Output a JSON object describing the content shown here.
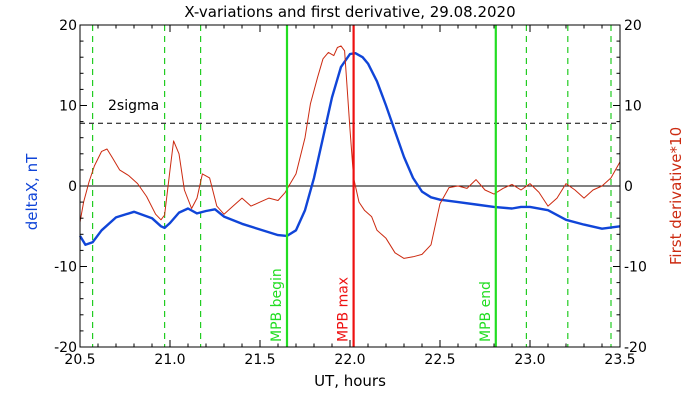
{
  "chart_data": {
    "type": "line",
    "title": "X-variations and first derivative, 29.08.2020",
    "xlabel": "UT, hours",
    "ylabel_left": "deltaX, nT",
    "ylabel_right": "First derivative*10",
    "xlim": [
      20.5,
      23.5
    ],
    "ylim": [
      -20,
      20
    ],
    "xticks": [
      {
        "v": 20.5,
        "label": "20.5"
      },
      {
        "v": 21.0,
        "label": "21.0"
      },
      {
        "v": 21.5,
        "label": "21.5"
      },
      {
        "v": 22.0,
        "label": "22.0"
      },
      {
        "v": 22.5,
        "label": "22.5"
      },
      {
        "v": 23.0,
        "label": "23.0"
      },
      {
        "v": 23.5,
        "label": "23.5"
      }
    ],
    "yticks": [
      {
        "v": 20,
        "label": "20"
      },
      {
        "v": 10,
        "label": "10"
      },
      {
        "v": 0,
        "label": "0"
      },
      {
        "v": -10,
        "label": "-10"
      },
      {
        "v": -20,
        "label": "-20"
      }
    ],
    "sigma_level": 7.8,
    "sigma_label": "2sigma",
    "colors": {
      "deltaX": "#1045d8",
      "derivative": "#cc2a10",
      "green": "#22dd22",
      "red": "#ee1010",
      "dashed_green": "#22cc22",
      "black": "#000000"
    },
    "dashed_green_lines": [
      20.57,
      20.97,
      21.17,
      22.98,
      23.21,
      23.45
    ],
    "vertical_markers": [
      {
        "x": 21.65,
        "label": "MPB begin",
        "color": "green"
      },
      {
        "x": 22.02,
        "label": "MPB max",
        "color": "red"
      },
      {
        "x": 22.81,
        "label": "MPB end",
        "color": "green"
      }
    ],
    "series": [
      {
        "name": "deltaX",
        "axis": "left",
        "x": [
          20.5,
          20.53,
          20.57,
          20.62,
          20.7,
          20.8,
          20.9,
          20.95,
          20.97,
          21.0,
          21.05,
          21.1,
          21.15,
          21.2,
          21.25,
          21.3,
          21.4,
          21.5,
          21.6,
          21.65,
          21.7,
          21.75,
          21.8,
          21.85,
          21.9,
          21.95,
          22.0,
          22.03,
          22.07,
          22.1,
          22.15,
          22.2,
          22.25,
          22.3,
          22.35,
          22.4,
          22.45,
          22.5,
          22.6,
          22.7,
          22.8,
          22.9,
          22.95,
          23.0,
          23.1,
          23.2,
          23.3,
          23.4,
          23.5
        ],
        "y": [
          -6.2,
          -7.3,
          -7.0,
          -5.5,
          -3.9,
          -3.2,
          -4.0,
          -5.0,
          -5.2,
          -4.6,
          -3.3,
          -2.8,
          -3.4,
          -3.1,
          -2.9,
          -3.8,
          -4.7,
          -5.4,
          -6.1,
          -6.2,
          -5.5,
          -3.0,
          1.0,
          6.0,
          11.0,
          14.8,
          16.4,
          16.5,
          16.0,
          15.2,
          13.0,
          10.0,
          6.8,
          3.6,
          1.0,
          -0.7,
          -1.4,
          -1.7,
          -2.0,
          -2.3,
          -2.6,
          -2.8,
          -2.6,
          -2.6,
          -3.0,
          -4.2,
          -4.8,
          -5.3,
          -5.0
        ]
      },
      {
        "name": "First derivative*10",
        "axis": "right",
        "x": [
          20.5,
          20.52,
          20.55,
          20.58,
          20.62,
          20.65,
          20.68,
          20.72,
          20.77,
          20.82,
          20.87,
          20.92,
          20.95,
          20.97,
          21.0,
          21.02,
          21.05,
          21.08,
          21.12,
          21.15,
          21.18,
          21.22,
          21.26,
          21.3,
          21.35,
          21.4,
          21.45,
          21.5,
          21.55,
          21.6,
          21.64,
          21.66,
          21.7,
          21.75,
          21.78,
          21.82,
          21.85,
          21.88,
          21.91,
          21.93,
          21.95,
          21.97,
          22.0,
          22.02,
          22.05,
          22.08,
          22.12,
          22.15,
          22.2,
          22.25,
          22.3,
          22.35,
          22.4,
          22.45,
          22.5,
          22.55,
          22.6,
          22.65,
          22.7,
          22.75,
          22.8,
          22.85,
          22.9,
          22.95,
          23.0,
          23.05,
          23.1,
          23.15,
          23.2,
          23.25,
          23.3,
          23.35,
          23.4,
          23.45,
          23.5
        ],
        "y": [
          -4.5,
          -2.0,
          0.5,
          2.5,
          4.3,
          4.6,
          3.5,
          2.0,
          1.3,
          0.3,
          -1.3,
          -3.5,
          -4.2,
          -3.6,
          2.0,
          5.6,
          4.0,
          -0.5,
          -2.8,
          -1.5,
          1.5,
          1.0,
          -2.5,
          -3.5,
          -2.5,
          -1.5,
          -2.5,
          -2.0,
          -1.5,
          -1.8,
          -0.8,
          0.0,
          1.5,
          6.0,
          10.2,
          13.5,
          15.8,
          16.6,
          16.2,
          17.2,
          17.4,
          16.8,
          7.0,
          1.0,
          -2.0,
          -3.0,
          -3.8,
          -5.5,
          -6.5,
          -8.3,
          -9.0,
          -8.8,
          -8.5,
          -7.3,
          -2.2,
          -0.2,
          0.0,
          -0.3,
          0.8,
          -0.5,
          -1.0,
          -0.3,
          0.2,
          -0.5,
          0.3,
          -0.8,
          -2.5,
          -1.5,
          0.3,
          -0.5,
          -1.5,
          -0.5,
          0.0,
          1.0,
          3.0
        ]
      }
    ]
  }
}
